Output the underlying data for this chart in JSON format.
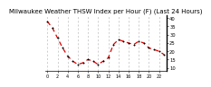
{
  "title": "Milwaukee Weather THSW Index per Hour (F) (Last 24 Hours)",
  "x_values": [
    0,
    1,
    2,
    3,
    4,
    5,
    6,
    7,
    8,
    9,
    10,
    11,
    12,
    13,
    14,
    15,
    16,
    17,
    18,
    19,
    20,
    21,
    22,
    23
  ],
  "y_values": [
    38,
    34,
    28,
    22,
    17,
    14,
    12,
    13,
    15,
    14,
    12,
    14,
    16,
    24,
    27,
    26,
    25,
    24,
    26,
    25,
    22,
    21,
    20,
    18
  ],
  "line_color": "#dd0000",
  "marker_color": "#000000",
  "background_color": "#ffffff",
  "grid_color": "#bbbbbb",
  "title_color": "#000000",
  "title_fontsize": 5.0,
  "ylim": [
    8,
    42
  ],
  "xlim": [
    -0.5,
    23.5
  ],
  "ytick_values": [
    10,
    15,
    20,
    25,
    30,
    35,
    40
  ],
  "xtick_values": [
    0,
    2,
    4,
    6,
    8,
    10,
    12,
    14,
    16,
    18,
    20,
    22
  ],
  "ylabel_fontsize": 3.8,
  "xlabel_fontsize": 3.5,
  "tick_label_color": "#000000",
  "line_width": 0.9,
  "marker_size": 2.0
}
